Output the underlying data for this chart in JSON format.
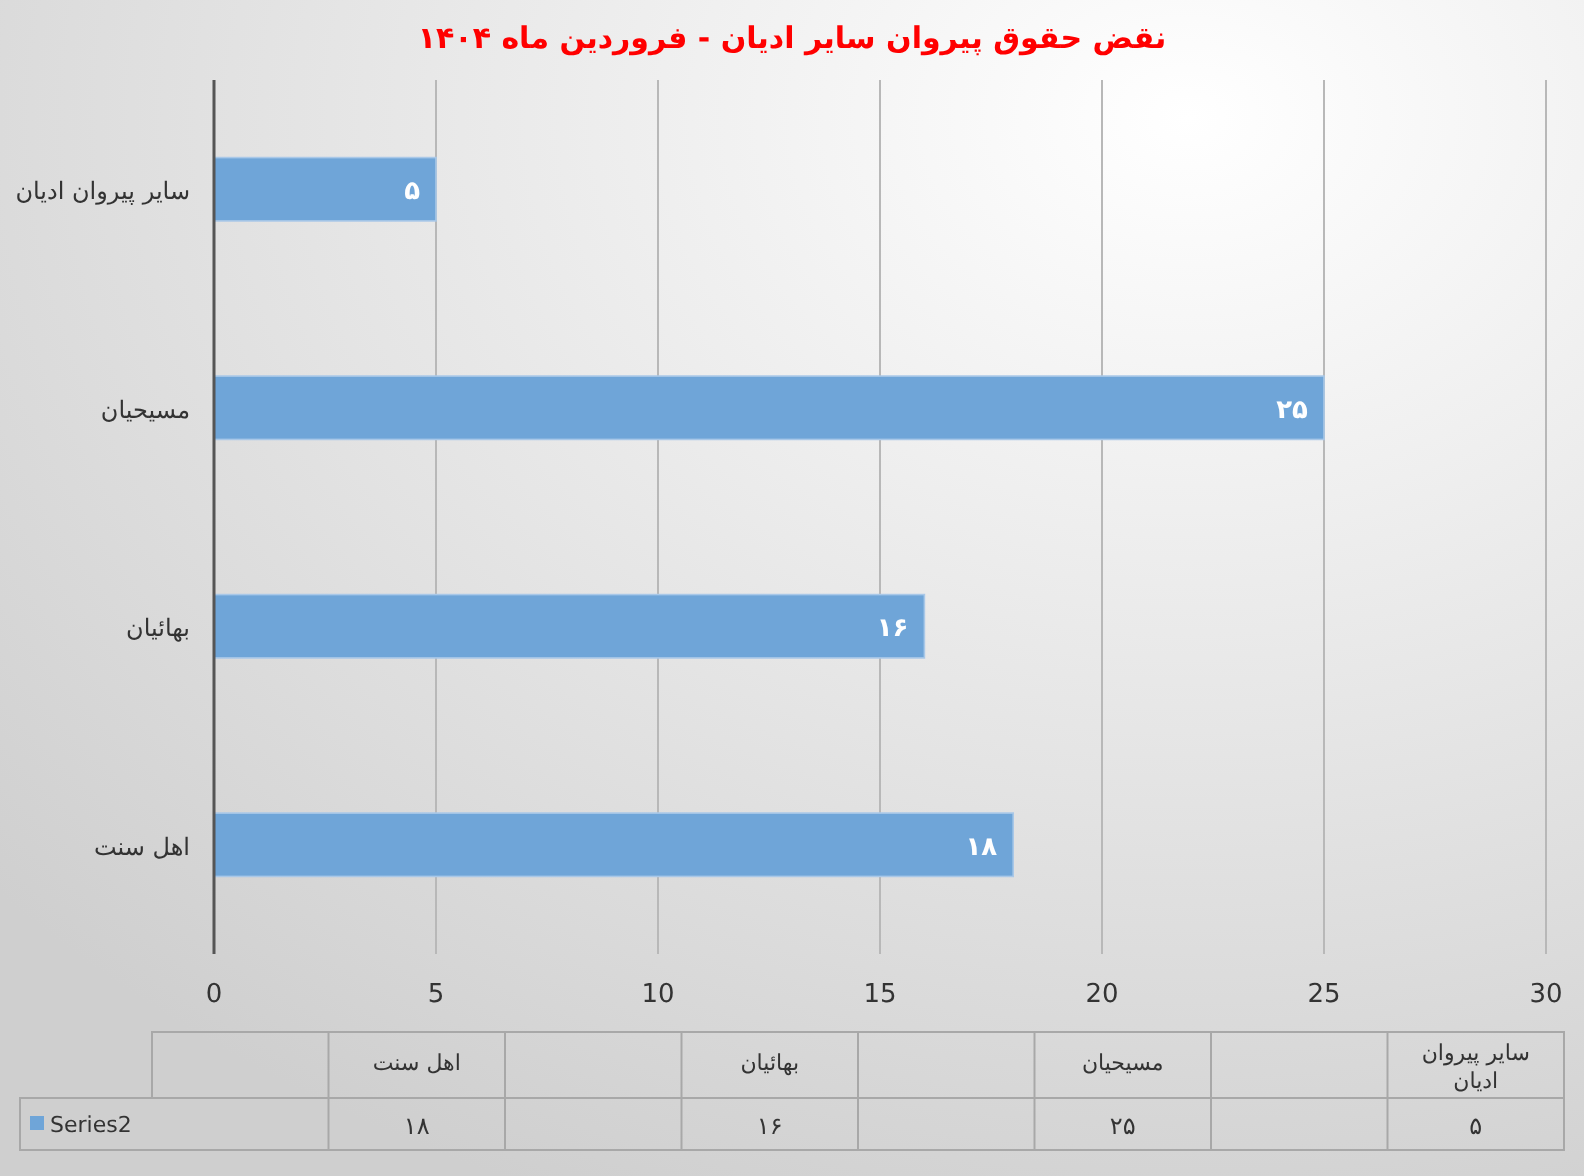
{
  "chart_data": {
    "type": "bar",
    "orientation": "horizontal",
    "title": "نقض حقوق پیروان سایر ادیان - فروردین ماه ۱۴۰۴",
    "categories": [
      "سایر پیروان ادیان",
      "مسیحیان",
      "بهائیان",
      "اهل سنت"
    ],
    "series": [
      {
        "name": "Series2",
        "color": "#6fa5d8",
        "values": [
          5,
          25,
          16,
          18
        ],
        "value_labels": [
          "۵",
          "۲۵",
          "۱۶",
          "۱۸"
        ]
      }
    ],
    "xlim": [
      0,
      30
    ],
    "xticks": [
      0,
      5,
      10,
      15,
      20,
      25,
      30
    ],
    "grid": "x",
    "legend": "bottom"
  }
}
